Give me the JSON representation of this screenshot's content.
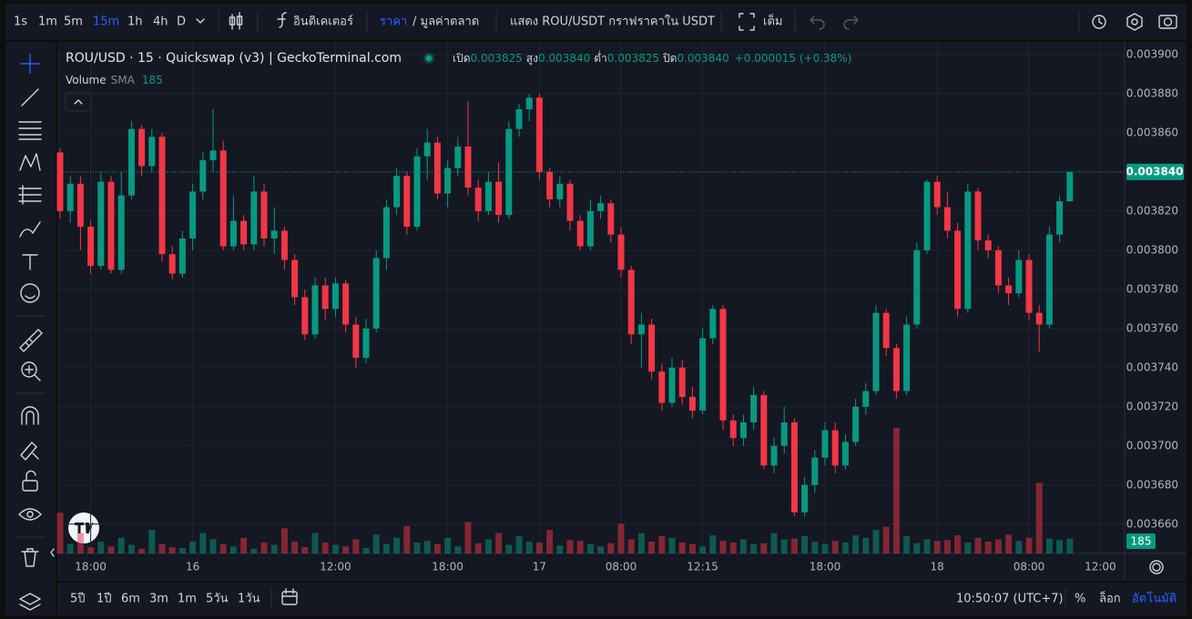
{
  "toolbar": {
    "intervals": [
      "1s",
      "1m",
      "5m",
      "15m",
      "1h",
      "4h",
      "D"
    ],
    "active": 3,
    "indicators": "อินดิเคเตอร์",
    "price": "ราคา",
    "market_cap": "/ มูลค่าตลาด",
    "show_usdt": "แสดง ROU/USDT กราฟราคาใน USDT",
    "fullscreen": "เต็ม"
  },
  "chart_data": {
    "type": "candlestick",
    "title": "ROU/USD · 15 · Quickswap (v3) | GeckoTerminal.com",
    "legend": {
      "labels": [
        "เปิด",
        "สูง",
        "ต่ำ",
        "ปิด"
      ],
      "values": [
        "0.003825",
        "0.003840",
        "0.003825",
        "0.003840"
      ],
      "change": "+0.000015 (+0.38%)"
    },
    "volume_label": "Volume",
    "volume_sma_label": "SMA",
    "volume_sma": 185,
    "up_color": "#089981",
    "down_color": "#f23645",
    "ylim": [
      0.003645,
      0.0039065
    ],
    "yticks": [
      {
        "value": 0.0039,
        "label": "0.003900"
      },
      {
        "value": 0.00388,
        "label": "0.003880"
      },
      {
        "value": 0.00386,
        "label": "0.003860"
      },
      {
        "value": 0.00384,
        "label": "0.003840"
      },
      {
        "value": 0.00382,
        "label": "0.003820"
      },
      {
        "value": 0.0038,
        "label": "0.003800"
      },
      {
        "value": 0.00378,
        "label": "0.003780"
      },
      {
        "value": 0.00376,
        "label": "0.003760"
      },
      {
        "value": 0.00374,
        "label": "0.003740"
      },
      {
        "value": 0.00372,
        "label": "0.003720"
      },
      {
        "value": 0.0037,
        "label": "0.003700"
      },
      {
        "value": 0.00368,
        "label": "0.003680"
      },
      {
        "value": 0.00366,
        "label": "0.003660"
      }
    ],
    "grid": true,
    "price_line": {
      "value": 0.00384,
      "label": "0.003840"
    },
    "categories": [
      null,
      null,
      null,
      "18:00",
      null,
      null,
      null,
      null,
      null,
      null,
      null,
      null,
      null,
      "16",
      null,
      null,
      null,
      null,
      null,
      null,
      null,
      null,
      null,
      null,
      null,
      null,
      null,
      "12:00",
      null,
      null,
      null,
      null,
      null,
      null,
      null,
      null,
      null,
      null,
      "18:00",
      null,
      null,
      null,
      null,
      null,
      null,
      null,
      null,
      "17",
      null,
      null,
      null,
      null,
      null,
      null,
      null,
      "08:00",
      null,
      null,
      null,
      null,
      null,
      null,
      null,
      "12:15",
      null,
      null,
      null,
      null,
      null,
      null,
      null,
      null,
      null,
      null,
      null,
      "18:00",
      null,
      null,
      null,
      null,
      null,
      null,
      null,
      null,
      null,
      null,
      "18",
      null,
      null,
      null,
      null,
      null,
      null,
      null,
      null,
      "08:00",
      null,
      null,
      null,
      null,
      null,
      null,
      "12:00"
    ],
    "candles": [
      [
        0.00385,
        0.003852,
        0.003816,
        0.00382
      ],
      [
        0.00382,
        0.003838,
        0.003814,
        0.003834
      ],
      [
        0.003834,
        0.003838,
        0.0038,
        0.003812
      ],
      [
        0.003812,
        0.003815,
        0.003788,
        0.003792
      ],
      [
        0.003792,
        0.00384,
        0.00379,
        0.003835
      ],
      [
        0.003835,
        0.003838,
        0.003788,
        0.00379
      ],
      [
        0.00379,
        0.00384,
        0.003788,
        0.003828
      ],
      [
        0.003828,
        0.003866,
        0.003826,
        0.003862
      ],
      [
        0.003862,
        0.003864,
        0.003838,
        0.003843
      ],
      [
        0.003843,
        0.003862,
        0.00384,
        0.003858
      ],
      [
        0.003858,
        0.00386,
        0.003794,
        0.003798
      ],
      [
        0.003798,
        0.003802,
        0.003785,
        0.003788
      ],
      [
        0.003788,
        0.00381,
        0.003786,
        0.003806
      ],
      [
        0.003806,
        0.003834,
        0.0038,
        0.00383
      ],
      [
        0.00383,
        0.00385,
        0.003826,
        0.003846
      ],
      [
        0.003846,
        0.003872,
        0.00384,
        0.003851
      ],
      [
        0.003851,
        0.003856,
        0.0038,
        0.003802
      ],
      [
        0.003802,
        0.003828,
        0.0038,
        0.003815
      ],
      [
        0.003815,
        0.003818,
        0.0038,
        0.003803
      ],
      [
        0.003803,
        0.003838,
        0.0038,
        0.00383
      ],
      [
        0.00383,
        0.003834,
        0.003802,
        0.003806
      ],
      [
        0.003806,
        0.003822,
        0.003798,
        0.00381
      ],
      [
        0.00381,
        0.003812,
        0.00379,
        0.003795
      ],
      [
        0.003795,
        0.003798,
        0.003772,
        0.003776
      ],
      [
        0.003776,
        0.00378,
        0.003754,
        0.003757
      ],
      [
        0.003757,
        0.003786,
        0.003755,
        0.003782
      ],
      [
        0.003782,
        0.003786,
        0.003764,
        0.00377
      ],
      [
        0.00377,
        0.003786,
        0.003766,
        0.003783
      ],
      [
        0.003783,
        0.003785,
        0.003758,
        0.003762
      ],
      [
        0.003762,
        0.003766,
        0.00374,
        0.003745
      ],
      [
        0.003745,
        0.003765,
        0.003742,
        0.00376
      ],
      [
        0.00376,
        0.0038,
        0.003758,
        0.003796
      ],
      [
        0.003796,
        0.003826,
        0.00379,
        0.003822
      ],
      [
        0.003822,
        0.003842,
        0.003818,
        0.003838
      ],
      [
        0.003838,
        0.00384,
        0.003808,
        0.003812
      ],
      [
        0.003812,
        0.003852,
        0.00381,
        0.003848
      ],
      [
        0.003848,
        0.003862,
        0.003836,
        0.003855
      ],
      [
        0.003855,
        0.003858,
        0.003826,
        0.003829
      ],
      [
        0.003829,
        0.003846,
        0.003822,
        0.003842
      ],
      [
        0.003842,
        0.003858,
        0.003838,
        0.003853
      ],
      [
        0.003853,
        0.003876,
        0.003828,
        0.003832
      ],
      [
        0.003832,
        0.003836,
        0.003815,
        0.00382
      ],
      [
        0.00382,
        0.00384,
        0.003818,
        0.003835
      ],
      [
        0.003835,
        0.003845,
        0.003814,
        0.003818
      ],
      [
        0.003818,
        0.003866,
        0.003816,
        0.003862
      ],
      [
        0.003862,
        0.003875,
        0.003858,
        0.003872
      ],
      [
        0.003872,
        0.00388,
        0.003866,
        0.003878
      ],
      [
        0.003878,
        0.00388,
        0.003836,
        0.00384
      ],
      [
        0.00384,
        0.003842,
        0.003822,
        0.003826
      ],
      [
        0.003826,
        0.003838,
        0.003822,
        0.003834
      ],
      [
        0.003834,
        0.003836,
        0.00381,
        0.003815
      ],
      [
        0.003815,
        0.003818,
        0.0038,
        0.003802
      ],
      [
        0.003802,
        0.003826,
        0.0038,
        0.00382
      ],
      [
        0.00382,
        0.003828,
        0.003816,
        0.003824
      ],
      [
        0.003824,
        0.003826,
        0.003804,
        0.003808
      ],
      [
        0.003808,
        0.003812,
        0.003786,
        0.00379
      ],
      [
        0.00379,
        0.003792,
        0.003752,
        0.003757
      ],
      [
        0.003757,
        0.003768,
        0.00374,
        0.003762
      ],
      [
        0.003762,
        0.003765,
        0.003734,
        0.003738
      ],
      [
        0.003738,
        0.003742,
        0.003718,
        0.003722
      ],
      [
        0.003722,
        0.003745,
        0.00372,
        0.00374
      ],
      [
        0.00374,
        0.003744,
        0.003721,
        0.003725
      ],
      [
        0.003725,
        0.00373,
        0.003714,
        0.003718
      ],
      [
        0.003718,
        0.00376,
        0.003716,
        0.003755
      ],
      [
        0.003755,
        0.003772,
        0.003752,
        0.00377
      ],
      [
        0.00377,
        0.003772,
        0.003708,
        0.003713
      ],
      [
        0.003713,
        0.003716,
        0.0037,
        0.003704
      ],
      [
        0.003704,
        0.003716,
        0.0037,
        0.003712
      ],
      [
        0.003712,
        0.00373,
        0.003708,
        0.003726
      ],
      [
        0.003726,
        0.003728,
        0.003688,
        0.00369
      ],
      [
        0.00369,
        0.003704,
        0.003686,
        0.0037
      ],
      [
        0.0037,
        0.00372,
        0.003696,
        0.003712
      ],
      [
        0.003712,
        0.003714,
        0.003664,
        0.003666
      ],
      [
        0.003666,
        0.003684,
        0.003664,
        0.00368
      ],
      [
        0.00368,
        0.003698,
        0.003676,
        0.003694
      ],
      [
        0.003694,
        0.003712,
        0.00369,
        0.003708
      ],
      [
        0.003708,
        0.003712,
        0.003686,
        0.00369
      ],
      [
        0.00369,
        0.003706,
        0.003688,
        0.003702
      ],
      [
        0.003702,
        0.003724,
        0.0037,
        0.00372
      ],
      [
        0.00372,
        0.003732,
        0.003716,
        0.003728
      ],
      [
        0.003728,
        0.003772,
        0.003726,
        0.003768
      ],
      [
        0.003768,
        0.00377,
        0.003746,
        0.00375
      ],
      [
        0.00375,
        0.003752,
        0.003724,
        0.003728
      ],
      [
        0.003728,
        0.003766,
        0.003726,
        0.003762
      ],
      [
        0.003762,
        0.003804,
        0.00376,
        0.0038
      ],
      [
        0.0038,
        0.003836,
        0.003798,
        0.003835
      ],
      [
        0.003835,
        0.003838,
        0.003818,
        0.003822
      ],
      [
        0.003822,
        0.00383,
        0.003806,
        0.00381
      ],
      [
        0.00381,
        0.003814,
        0.003766,
        0.00377
      ],
      [
        0.00377,
        0.003834,
        0.003768,
        0.00383
      ],
      [
        0.00383,
        0.003832,
        0.0038,
        0.003805
      ],
      [
        0.003805,
        0.003808,
        0.003796,
        0.0038
      ],
      [
        0.0038,
        0.003802,
        0.003778,
        0.003782
      ],
      [
        0.003782,
        0.003786,
        0.003772,
        0.003778
      ],
      [
        0.003778,
        0.0038,
        0.003776,
        0.003795
      ],
      [
        0.003795,
        0.003798,
        0.003764,
        0.003768
      ],
      [
        0.003768,
        0.003772,
        0.003748,
        0.003762
      ],
      [
        0.003762,
        0.003812,
        0.00376,
        0.003808
      ],
      [
        0.003808,
        0.003828,
        0.003804,
        0.003825
      ],
      [
        0.003825,
        0.00384,
        0.003825,
        0.00384
      ],
      null,
      null,
      null
    ],
    "volumes": [
      520,
      120,
      260,
      80,
      150,
      90,
      200,
      110,
      60,
      300,
      120,
      80,
      70,
      150,
      260,
      180,
      120,
      90,
      200,
      60,
      140,
      110,
      320,
      150,
      80,
      260,
      140,
      110,
      90,
      180,
      70,
      240,
      120,
      200,
      350,
      140,
      160,
      120,
      200,
      90,
      400,
      130,
      180,
      260,
      110,
      220,
      150,
      140,
      300,
      100,
      170,
      160,
      120,
      90,
      130,
      380,
      180,
      260,
      150,
      220,
      200,
      140,
      120,
      90,
      230,
      160,
      140,
      180,
      120,
      130,
      260,
      180,
      190,
      220,
      150,
      120,
      160,
      140,
      230,
      200,
      300,
      340,
      1600,
      220,
      130,
      180,
      160,
      170,
      230,
      140,
      200,
      150,
      180,
      240,
      160,
      200,
      900,
      190,
      170,
      190,
      null,
      null,
      null
    ]
  },
  "bottom_bar": {
    "ranges": [
      "5ปี",
      "1ปี",
      "6m",
      "3m",
      "1m",
      "5วัน",
      "1วัน"
    ],
    "clock": "10:50:07 (UTC+7)",
    "percent": "%",
    "log": "ล็อก",
    "auto": "อัตโนมัติ"
  }
}
